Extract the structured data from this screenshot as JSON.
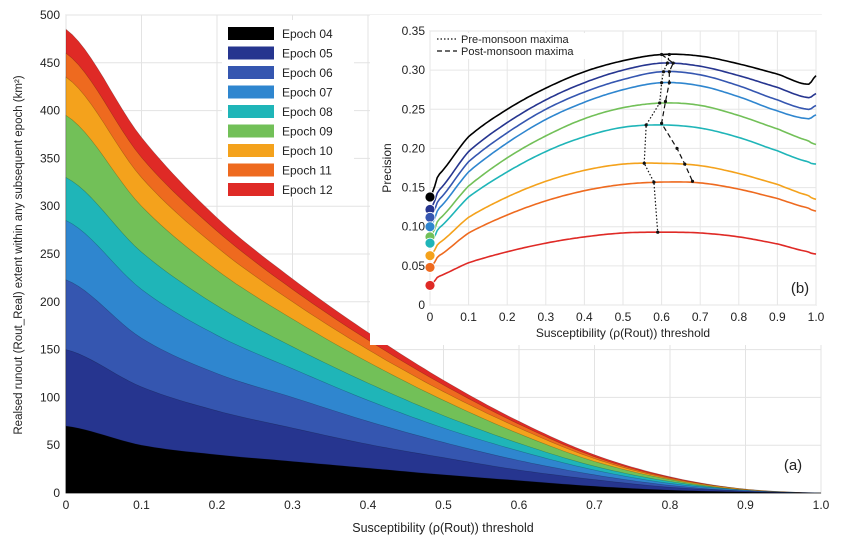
{
  "chart_data": [
    {
      "panel_label": "(a)",
      "type": "area",
      "xlabel": "Susceptibility (ρ(Rout)) threshold",
      "ylabel": "Realsed runout (Rout_Real) extent within any subsequent epoch (km²)",
      "xlim": [
        0,
        1.0
      ],
      "ylim": [
        0,
        500
      ],
      "xticks": [
        "0",
        "0.1",
        "0.2",
        "0.3",
        "0.4",
        "0.5",
        "0.6",
        "0.7",
        "0.8",
        "0.9",
        "1.0"
      ],
      "yticks": [
        "0",
        "50",
        "100",
        "150",
        "200",
        "250",
        "300",
        "350",
        "400",
        "450",
        "500"
      ],
      "grid": true,
      "legend_position": "top-left",
      "x": [
        0,
        0.1,
        0.2,
        0.3,
        0.4,
        0.5,
        0.6,
        0.7,
        0.8,
        0.9,
        1.0
      ],
      "series": [
        {
          "name": "Epoch 04",
          "color": "#000000",
          "values": [
            70,
            50,
            40,
            33,
            26,
            19,
            13,
            7,
            3,
            1,
            0
          ]
        },
        {
          "name": "Epoch 05",
          "color": "#26358f",
          "values": [
            150,
            111,
            86,
            68,
            51,
            37,
            24,
            14,
            6,
            2,
            0
          ]
        },
        {
          "name": "Epoch 06",
          "color": "#3556b0",
          "values": [
            223,
            162,
            125,
            100,
            75,
            53,
            34,
            19,
            8,
            2,
            0
          ]
        },
        {
          "name": "Epoch 07",
          "color": "#2f86cf",
          "values": [
            285,
            213,
            165,
            130,
            97,
            68,
            44,
            24,
            10,
            3,
            0
          ]
        },
        {
          "name": "Epoch 08",
          "color": "#1fb5b8",
          "values": [
            330,
            252,
            196,
            153,
            115,
            81,
            52,
            28,
            12,
            3,
            0
          ]
        },
        {
          "name": "Epoch 09",
          "color": "#72c058",
          "values": [
            395,
            300,
            233,
            182,
            137,
            97,
            62,
            33,
            14,
            3,
            0
          ]
        },
        {
          "name": "Epoch 10",
          "color": "#f4a21c",
          "values": [
            435,
            330,
            257,
            200,
            150,
            106,
            68,
            36,
            15,
            4,
            0
          ]
        },
        {
          "name": "Epoch 11",
          "color": "#ee6a1f",
          "values": [
            460,
            351,
            274,
            213,
            160,
            113,
            72,
            38,
            16,
            4,
            0
          ]
        },
        {
          "name": "Epoch 12",
          "color": "#df2a26",
          "values": [
            485,
            372,
            288,
            224,
            168,
            118,
            75,
            40,
            17,
            4,
            0
          ]
        }
      ]
    },
    {
      "panel_label": "(b)",
      "type": "line",
      "xlabel": "Susceptibility (ρ(Rout)) threshold",
      "ylabel": "Precision",
      "xlim": [
        0,
        1.0
      ],
      "ylim": [
        0,
        0.35
      ],
      "xticks": [
        "0",
        "0.1",
        "0.2",
        "0.3",
        "0.4",
        "0.5",
        "0.6",
        "0.7",
        "0.8",
        "0.9",
        "1.0"
      ],
      "yticks": [
        "0",
        "0.05",
        "0.10",
        "0.15",
        "0.20",
        "0.25",
        "0.30",
        "0.35"
      ],
      "grid": true,
      "legend_position": "top-left",
      "x": [
        0,
        0.02,
        0.1,
        0.2,
        0.3,
        0.4,
        0.5,
        0.6,
        0.7,
        0.8,
        0.9,
        0.98,
        1.0
      ],
      "series": [
        {
          "color": "#000000",
          "values": [
            0.138,
            0.165,
            0.215,
            0.25,
            0.277,
            0.298,
            0.312,
            0.32,
            0.318,
            0.308,
            0.295,
            0.282,
            0.293
          ]
        },
        {
          "color": "#26358f",
          "values": [
            0.122,
            0.145,
            0.196,
            0.233,
            0.262,
            0.284,
            0.3,
            0.309,
            0.305,
            0.293,
            0.278,
            0.265,
            0.27
          ]
        },
        {
          "color": "#3556b0",
          "values": [
            0.112,
            0.133,
            0.183,
            0.22,
            0.25,
            0.272,
            0.288,
            0.298,
            0.294,
            0.28,
            0.262,
            0.25,
            0.255
          ]
        },
        {
          "color": "#2f86cf",
          "values": [
            0.1,
            0.122,
            0.17,
            0.207,
            0.237,
            0.259,
            0.275,
            0.284,
            0.28,
            0.266,
            0.248,
            0.238,
            0.243
          ]
        },
        {
          "color": "#72c058",
          "values": [
            0.087,
            0.108,
            0.152,
            0.188,
            0.216,
            0.238,
            0.252,
            0.258,
            0.255,
            0.242,
            0.225,
            0.21,
            0.205
          ]
        },
        {
          "color": "#1fb5b8",
          "values": [
            0.079,
            0.097,
            0.138,
            0.17,
            0.196,
            0.215,
            0.227,
            0.23,
            0.226,
            0.214,
            0.197,
            0.183,
            0.18
          ]
        },
        {
          "color": "#f4a21c",
          "values": [
            0.063,
            0.078,
            0.112,
            0.138,
            0.158,
            0.172,
            0.18,
            0.181,
            0.178,
            0.168,
            0.154,
            0.14,
            0.135
          ]
        },
        {
          "color": "#ee6a1f",
          "values": [
            0.048,
            0.062,
            0.092,
            0.115,
            0.133,
            0.146,
            0.154,
            0.157,
            0.156,
            0.148,
            0.136,
            0.124,
            0.12
          ]
        },
        {
          "color": "#df2a26",
          "values": [
            0.025,
            0.036,
            0.054,
            0.068,
            0.079,
            0.087,
            0.092,
            0.093,
            0.092,
            0.087,
            0.078,
            0.068,
            0.065
          ]
        }
      ],
      "maxima_lines": [
        {
          "name": "Pre-monsoon maxima",
          "style": "dotted",
          "x": [
            0.62,
            0.615,
            0.605,
            0.6,
            0.595,
            0.56,
            0.555,
            0.58,
            0.59
          ],
          "y": [
            0.32,
            0.309,
            0.298,
            0.284,
            0.258,
            0.23,
            0.181,
            0.157,
            0.093
          ]
        },
        {
          "name": "Post-monsoon maxima",
          "style": "dashed",
          "x": [
            0.6,
            0.63,
            0.62,
            0.62,
            0.61,
            0.6,
            0.64,
            0.66,
            0.68
          ],
          "y": [
            0.32,
            0.309,
            0.298,
            0.284,
            0.26,
            0.232,
            0.2,
            0.18,
            0.158
          ]
        }
      ]
    }
  ]
}
